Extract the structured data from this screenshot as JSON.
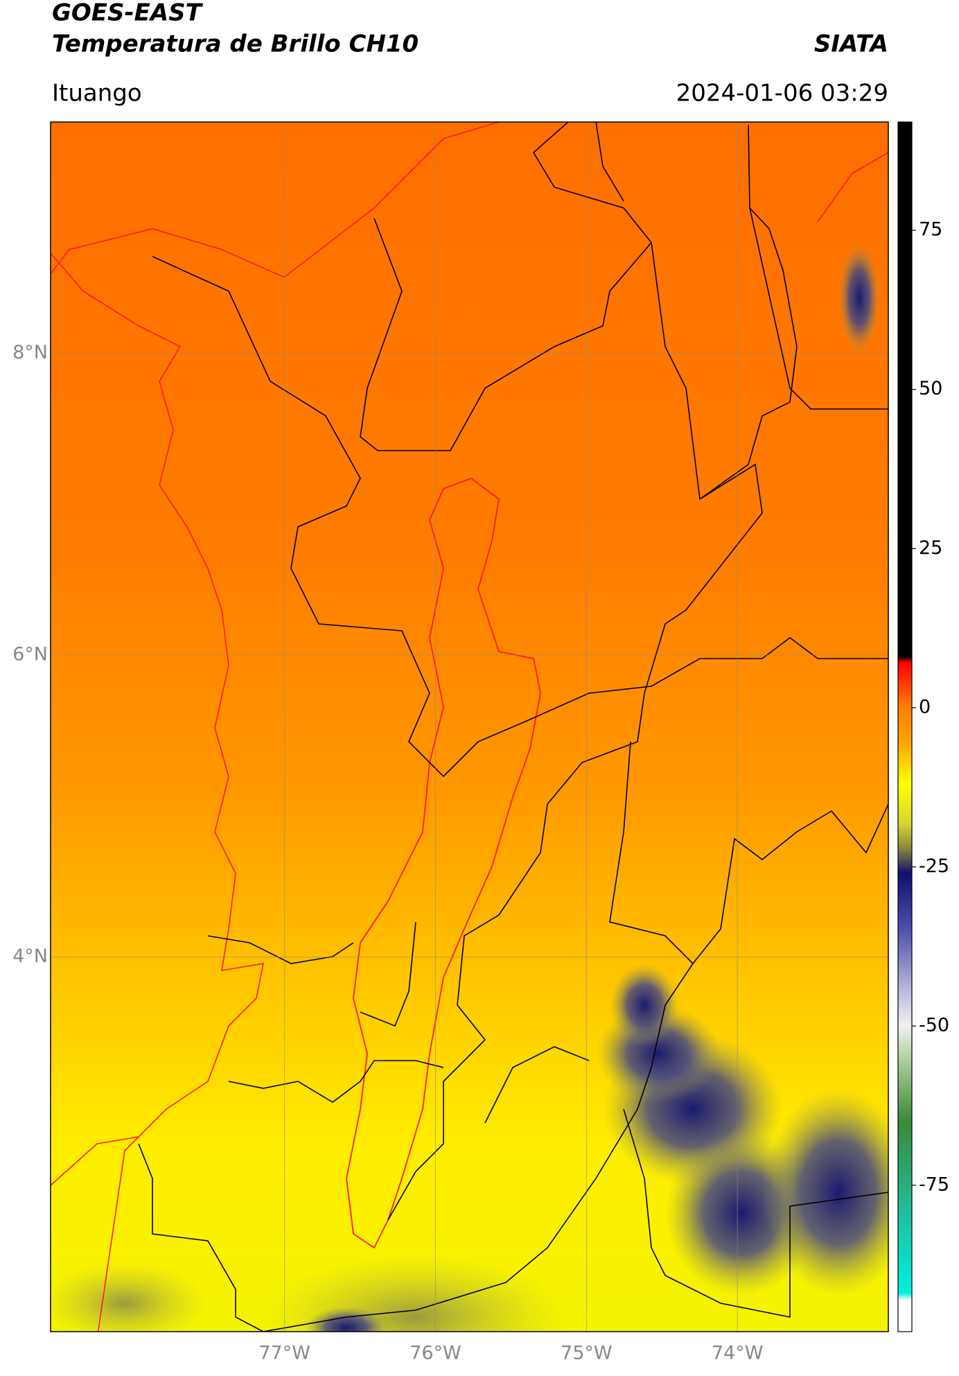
{
  "header": {
    "title": "GOES-EAST",
    "subtitle": "Temperatura de Brillo CH10",
    "source": "SIATA",
    "location": "Ituango",
    "timestamp": "2024-01-06 03:29"
  },
  "map": {
    "xlim": [
      -78.55,
      -73.0
    ],
    "ylim": [
      1.52,
      9.53
    ],
    "xticks": [
      {
        "value": -77,
        "label": "77°W"
      },
      {
        "value": -76,
        "label": "76°W"
      },
      {
        "value": -75,
        "label": "75°W"
      },
      {
        "value": -74,
        "label": "74°W"
      }
    ],
    "yticks": [
      {
        "value": 8,
        "label": "8°N"
      },
      {
        "value": 6,
        "label": "6°N"
      },
      {
        "value": 4,
        "label": "4°N"
      }
    ],
    "grid": true
  },
  "colorbar": {
    "lim": [
      -98,
      92
    ],
    "ticks": [
      75,
      50,
      25,
      0,
      -25,
      -50,
      -75
    ]
  }
}
